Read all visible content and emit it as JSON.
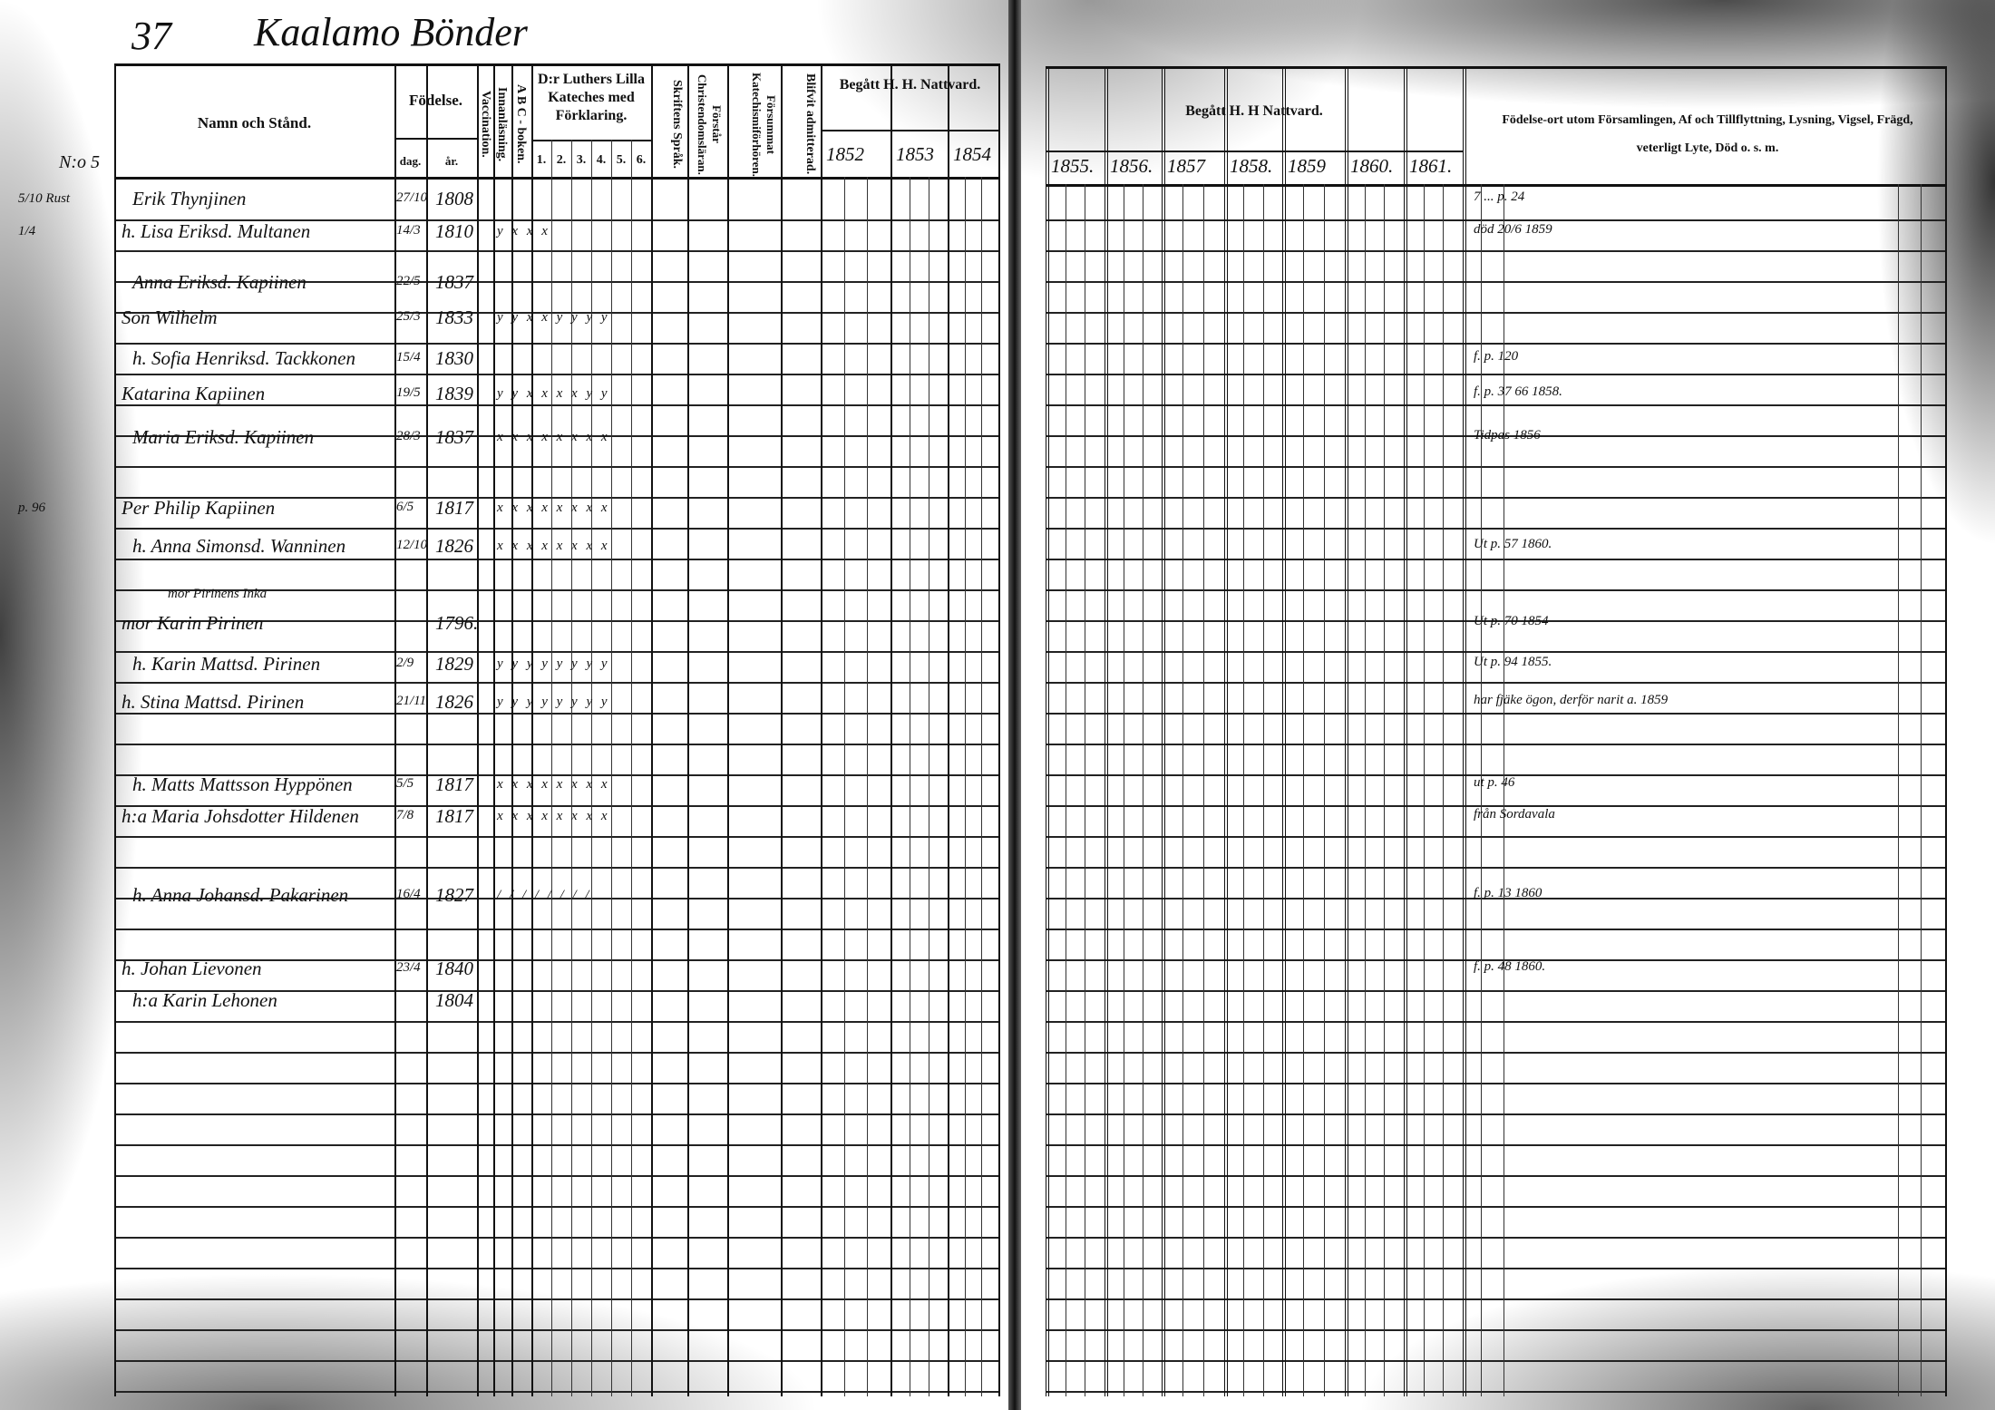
{
  "page_number": "37",
  "title": "Kaalamo Bönder",
  "margin_note_top": "N:o 5",
  "left_headers": {
    "name": "Namn och Stånd.",
    "birth": "Födelse.",
    "day": "dag.",
    "year": "år.",
    "vaccination": "Vaccination.",
    "reading": "Innanläsning.",
    "abc": "A B C - boken.",
    "luther": "D:r Luthers Lilla Kateches med Förklaring.",
    "luther_parts": [
      "1.",
      "2.",
      "3.",
      "4.",
      "5.",
      "6."
    ],
    "scripture": "Skriftens Språk.",
    "understands": "Förstår Christendomsläran.",
    "neglected": "Försummat Katechismiförhören.",
    "admitted": "Blifvit admitterad.",
    "communion": "Begått H. H. Nattvard.",
    "communion_years": [
      "1852",
      "1853",
      "1854"
    ]
  },
  "right_headers": {
    "communion": "Begått H. H Nattvard.",
    "communion_years": [
      "1855.",
      "1856.",
      "1857",
      "1858.",
      "1859",
      "1860.",
      "1861."
    ],
    "notes": "Födelse-ort utom Församlingen, Af och Tillflyttning, Lysning, Vigsel, Frägd, veterligt Lyte, Död o. s. m."
  },
  "entries": [
    {
      "margin": "5/10 Rust",
      "name": "Erik Thynjinen",
      "day": "27/10",
      "year": "1808",
      "marks": "",
      "note": "7 ... p. 24"
    },
    {
      "margin": "1/4",
      "name": "h. Lisa Eriksd. Multanen",
      "day": "14/3",
      "year": "1810",
      "marks": "y x x x",
      "note": "död 20/6 1859"
    },
    {
      "margin": "",
      "name": "Anna Eriksd. Kapiinen",
      "day": "22/5",
      "year": "1837",
      "marks": "",
      "note": ""
    },
    {
      "margin": "",
      "name": "Son Wilhelm",
      "day": "25/3",
      "year": "1833",
      "marks": "y y x x y y y y",
      "note": ""
    },
    {
      "margin": "",
      "name": "h. Sofia Henriksd. Tackkonen",
      "day": "15/4",
      "year": "1830",
      "marks": "",
      "note": "f. p. 120"
    },
    {
      "margin": "",
      "name": "Katarina Kapiinen",
      "day": "19/5",
      "year": "1839",
      "marks": "y y x x x x y y",
      "note": "f. p. 37 66 1858."
    },
    {
      "margin": "",
      "name": "Maria Eriksd. Kapiinen",
      "day": "28/3",
      "year": "1837",
      "marks": "x x x x x x x x",
      "note": "Tidpas 1856"
    },
    {
      "margin": "p. 96",
      "name": "Per Philip Kapiinen",
      "day": "6/5",
      "year": "1817",
      "marks": "x x x x x x x x",
      "note": ""
    },
    {
      "margin": "",
      "name": "h. Anna Simonsd. Wanninen",
      "day": "12/10",
      "year": "1826",
      "marks": "x x x x x x x x",
      "note": "Ut p. 57 1860."
    },
    {
      "margin": "",
      "name": "mor Karin Pirinen",
      "annotation": "mor Pirinens Inka",
      "day": "",
      "year": "1796.",
      "marks": "",
      "note": "Ut p. 70 1854"
    },
    {
      "margin": "",
      "name": "h. Karin Mattsd. Pirinen",
      "day": "2/9",
      "year": "1829",
      "marks": "y y y y y y y y",
      "note": "Ut p. 94 1855."
    },
    {
      "margin": "",
      "name": "h. Stina Mattsd. Pirinen",
      "day": "21/11",
      "year": "1826",
      "marks": "y y y y y y y y",
      "note": "har fjäke ögon, derför narit a. 1859"
    },
    {
      "margin": "",
      "name": "h. Matts Mattsson Hyppönen",
      "day": "5/5",
      "year": "1817",
      "marks": "x x x x x x x x",
      "note": "ut p. 46"
    },
    {
      "margin": "",
      "name": "h:a Maria Johsdotter Hildenen",
      "day": "7/8",
      "year": "1817",
      "marks": "x x x x x x x x",
      "note": "från Sordavala"
    },
    {
      "margin": "",
      "name": "h. Anna Johansd. Pakarinen",
      "day": "16/4",
      "year": "1827",
      "marks": "/ / / / / / / /",
      "note": "f. p. 13 1860"
    },
    {
      "margin": "",
      "name": "h. Johan Lievonen",
      "day": "23/4",
      "year": "1840",
      "marks": "",
      "note": "f. p. 48 1860."
    },
    {
      "margin": "",
      "name": "h:a Karin Lehonen",
      "day": "",
      "year": "1804",
      "marks": "",
      "note": ""
    }
  ]
}
